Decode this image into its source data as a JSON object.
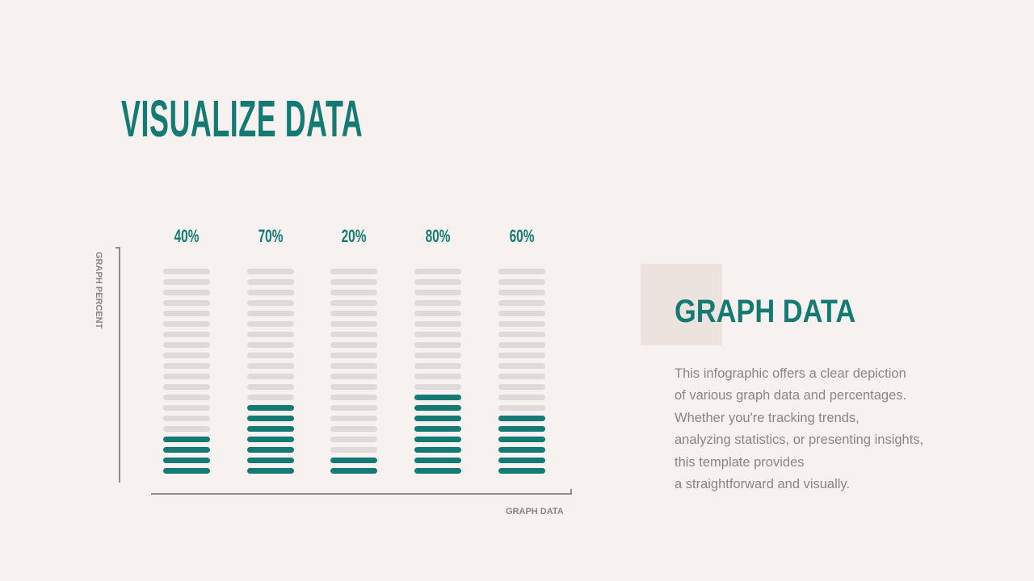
{
  "title": "VISUALIZE DATA",
  "chart_data": {
    "type": "bar",
    "style": "segmented",
    "segments_per_bar": 20,
    "categories": [
      "",
      "",
      "",
      "",
      ""
    ],
    "values": [
      40,
      70,
      20,
      80,
      60
    ],
    "data_labels": [
      "40%",
      "70%",
      "20%",
      "80%",
      "60%"
    ],
    "xlabel": "GRAPH DATA",
    "ylabel": "GRAPH PERCENT",
    "grid": false,
    "colors": {
      "filled": "#137a74",
      "empty": "#dedad9"
    }
  },
  "side": {
    "heading": "GRAPH DATA",
    "paragraph_lines": [
      "This infographic offers a clear depiction",
      "of various graph data and percentages.",
      "Whether you're tracking trends,",
      "analyzing statistics, or presenting insights,",
      "this template provides",
      "a straightforward and visually."
    ]
  },
  "colors": {
    "accent": "#137a74",
    "background": "#f7f1ef",
    "text": "#8a8587",
    "square": "#ece3df"
  }
}
